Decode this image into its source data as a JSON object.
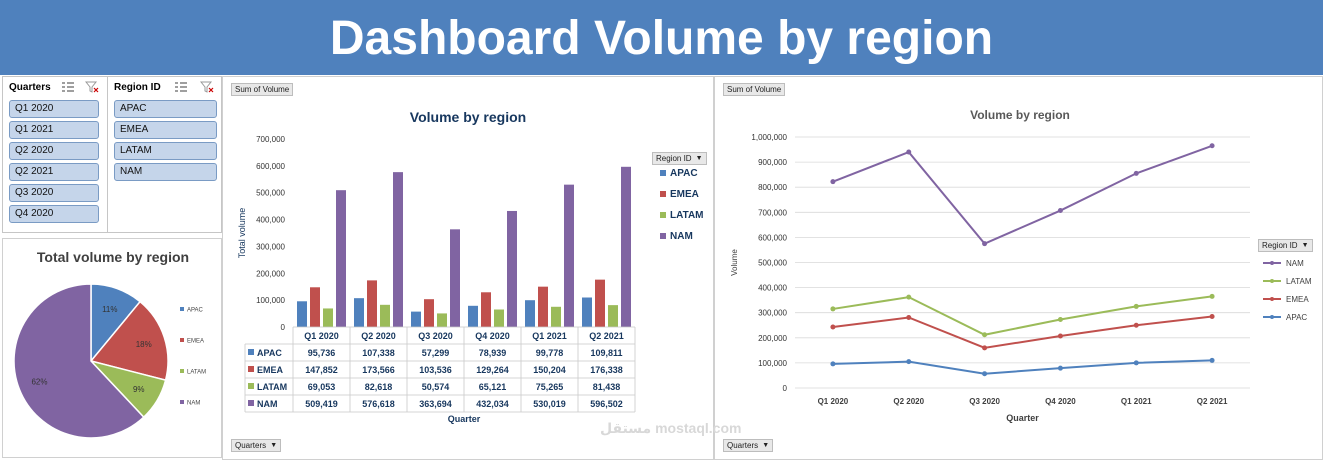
{
  "header": {
    "title": "Dashboard Volume by region"
  },
  "slicers": {
    "quarters": {
      "title": "Quarters",
      "items": [
        "Q1 2020",
        "Q1 2021",
        "Q2 2020",
        "Q2 2021",
        "Q3 2020",
        "Q4 2020"
      ]
    },
    "region": {
      "title": "Region ID",
      "items": [
        "APAC",
        "EMEA",
        "LATAM",
        "NAM"
      ]
    }
  },
  "colors": {
    "APAC": "#4f81bd",
    "EMEA": "#c0504d",
    "LATAM": "#9bbb59",
    "NAM": "#8064a2",
    "banner": "#4f81bd"
  },
  "buttons": {
    "sum_field": "Sum of Volume",
    "quarters_field": "Quarters",
    "region_field": "Region ID"
  },
  "watermark": {
    "arabic": "مستقل",
    "latin": "mostaql.com"
  },
  "chart_data": [
    {
      "type": "pie",
      "title": "Total volume by region",
      "labels": [
        "APAC",
        "EMEA",
        "LATAM",
        "NAM"
      ],
      "values": [
        11,
        18,
        9,
        62
      ],
      "value_labels": [
        "11%",
        "18%",
        "9%",
        "62%"
      ],
      "legend": "right"
    },
    {
      "type": "bar",
      "title": "Volume by region",
      "xlabel": "Quarter",
      "ylabel": "Total volume",
      "ylim": [
        0,
        700000
      ],
      "yticks": [
        "0",
        "100,000",
        "200,000",
        "300,000",
        "400,000",
        "500,000",
        "600,000",
        "700,000"
      ],
      "categories": [
        "Q1 2020",
        "Q2 2020",
        "Q3 2020",
        "Q4 2020",
        "Q1 2021",
        "Q2 2021"
      ],
      "series": [
        {
          "name": "APAC",
          "values": [
            95736,
            107338,
            57299,
            78939,
            99778,
            109811
          ],
          "labels": [
            "95,736",
            "107,338",
            "57,299",
            "78,939",
            "99,778",
            "109,811"
          ]
        },
        {
          "name": "EMEA",
          "values": [
            147852,
            173566,
            103536,
            129264,
            150204,
            176338
          ],
          "labels": [
            "147,852",
            "173,566",
            "103,536",
            "129,264",
            "150,204",
            "176,338"
          ]
        },
        {
          "name": "LATAM",
          "values": [
            69053,
            82618,
            50574,
            65121,
            75265,
            81438
          ],
          "labels": [
            "69,053",
            "82,618",
            "50,574",
            "65,121",
            "75,265",
            "81,438"
          ]
        },
        {
          "name": "NAM",
          "values": [
            509419,
            576618,
            363694,
            432034,
            530019,
            596502
          ],
          "labels": [
            "509,419",
            "576,618",
            "363,694",
            "432,034",
            "530,019",
            "596,502"
          ]
        }
      ],
      "legend": "right",
      "legend_title": "Region ID",
      "data_table": true
    },
    {
      "type": "line",
      "title": "Volume by region",
      "xlabel": "Quarter",
      "ylabel": "Volume",
      "ylim": [
        0,
        1000000
      ],
      "yticks": [
        "0",
        "100,000",
        "200,000",
        "300,000",
        "400,000",
        "500,000",
        "600,000",
        "700,000",
        "800,000",
        "900,000",
        "1,000,000"
      ],
      "categories": [
        "Q1 2020",
        "Q2 2020",
        "Q3 2020",
        "Q4 2020",
        "Q1 2021",
        "Q2 2021"
      ],
      "series": [
        {
          "name": "NAM",
          "values": [
            822000,
            940000,
            575000,
            707000,
            855000,
            965000
          ]
        },
        {
          "name": "LATAM",
          "values": [
            315000,
            362000,
            212000,
            273000,
            325000,
            365000
          ]
        },
        {
          "name": "EMEA",
          "values": [
            243000,
            281000,
            160000,
            207000,
            250000,
            285000
          ]
        },
        {
          "name": "APAC",
          "values": [
            96000,
            105000,
            57000,
            79000,
            100000,
            110000
          ]
        }
      ],
      "legend": "right",
      "legend_title": "Region ID"
    }
  ]
}
